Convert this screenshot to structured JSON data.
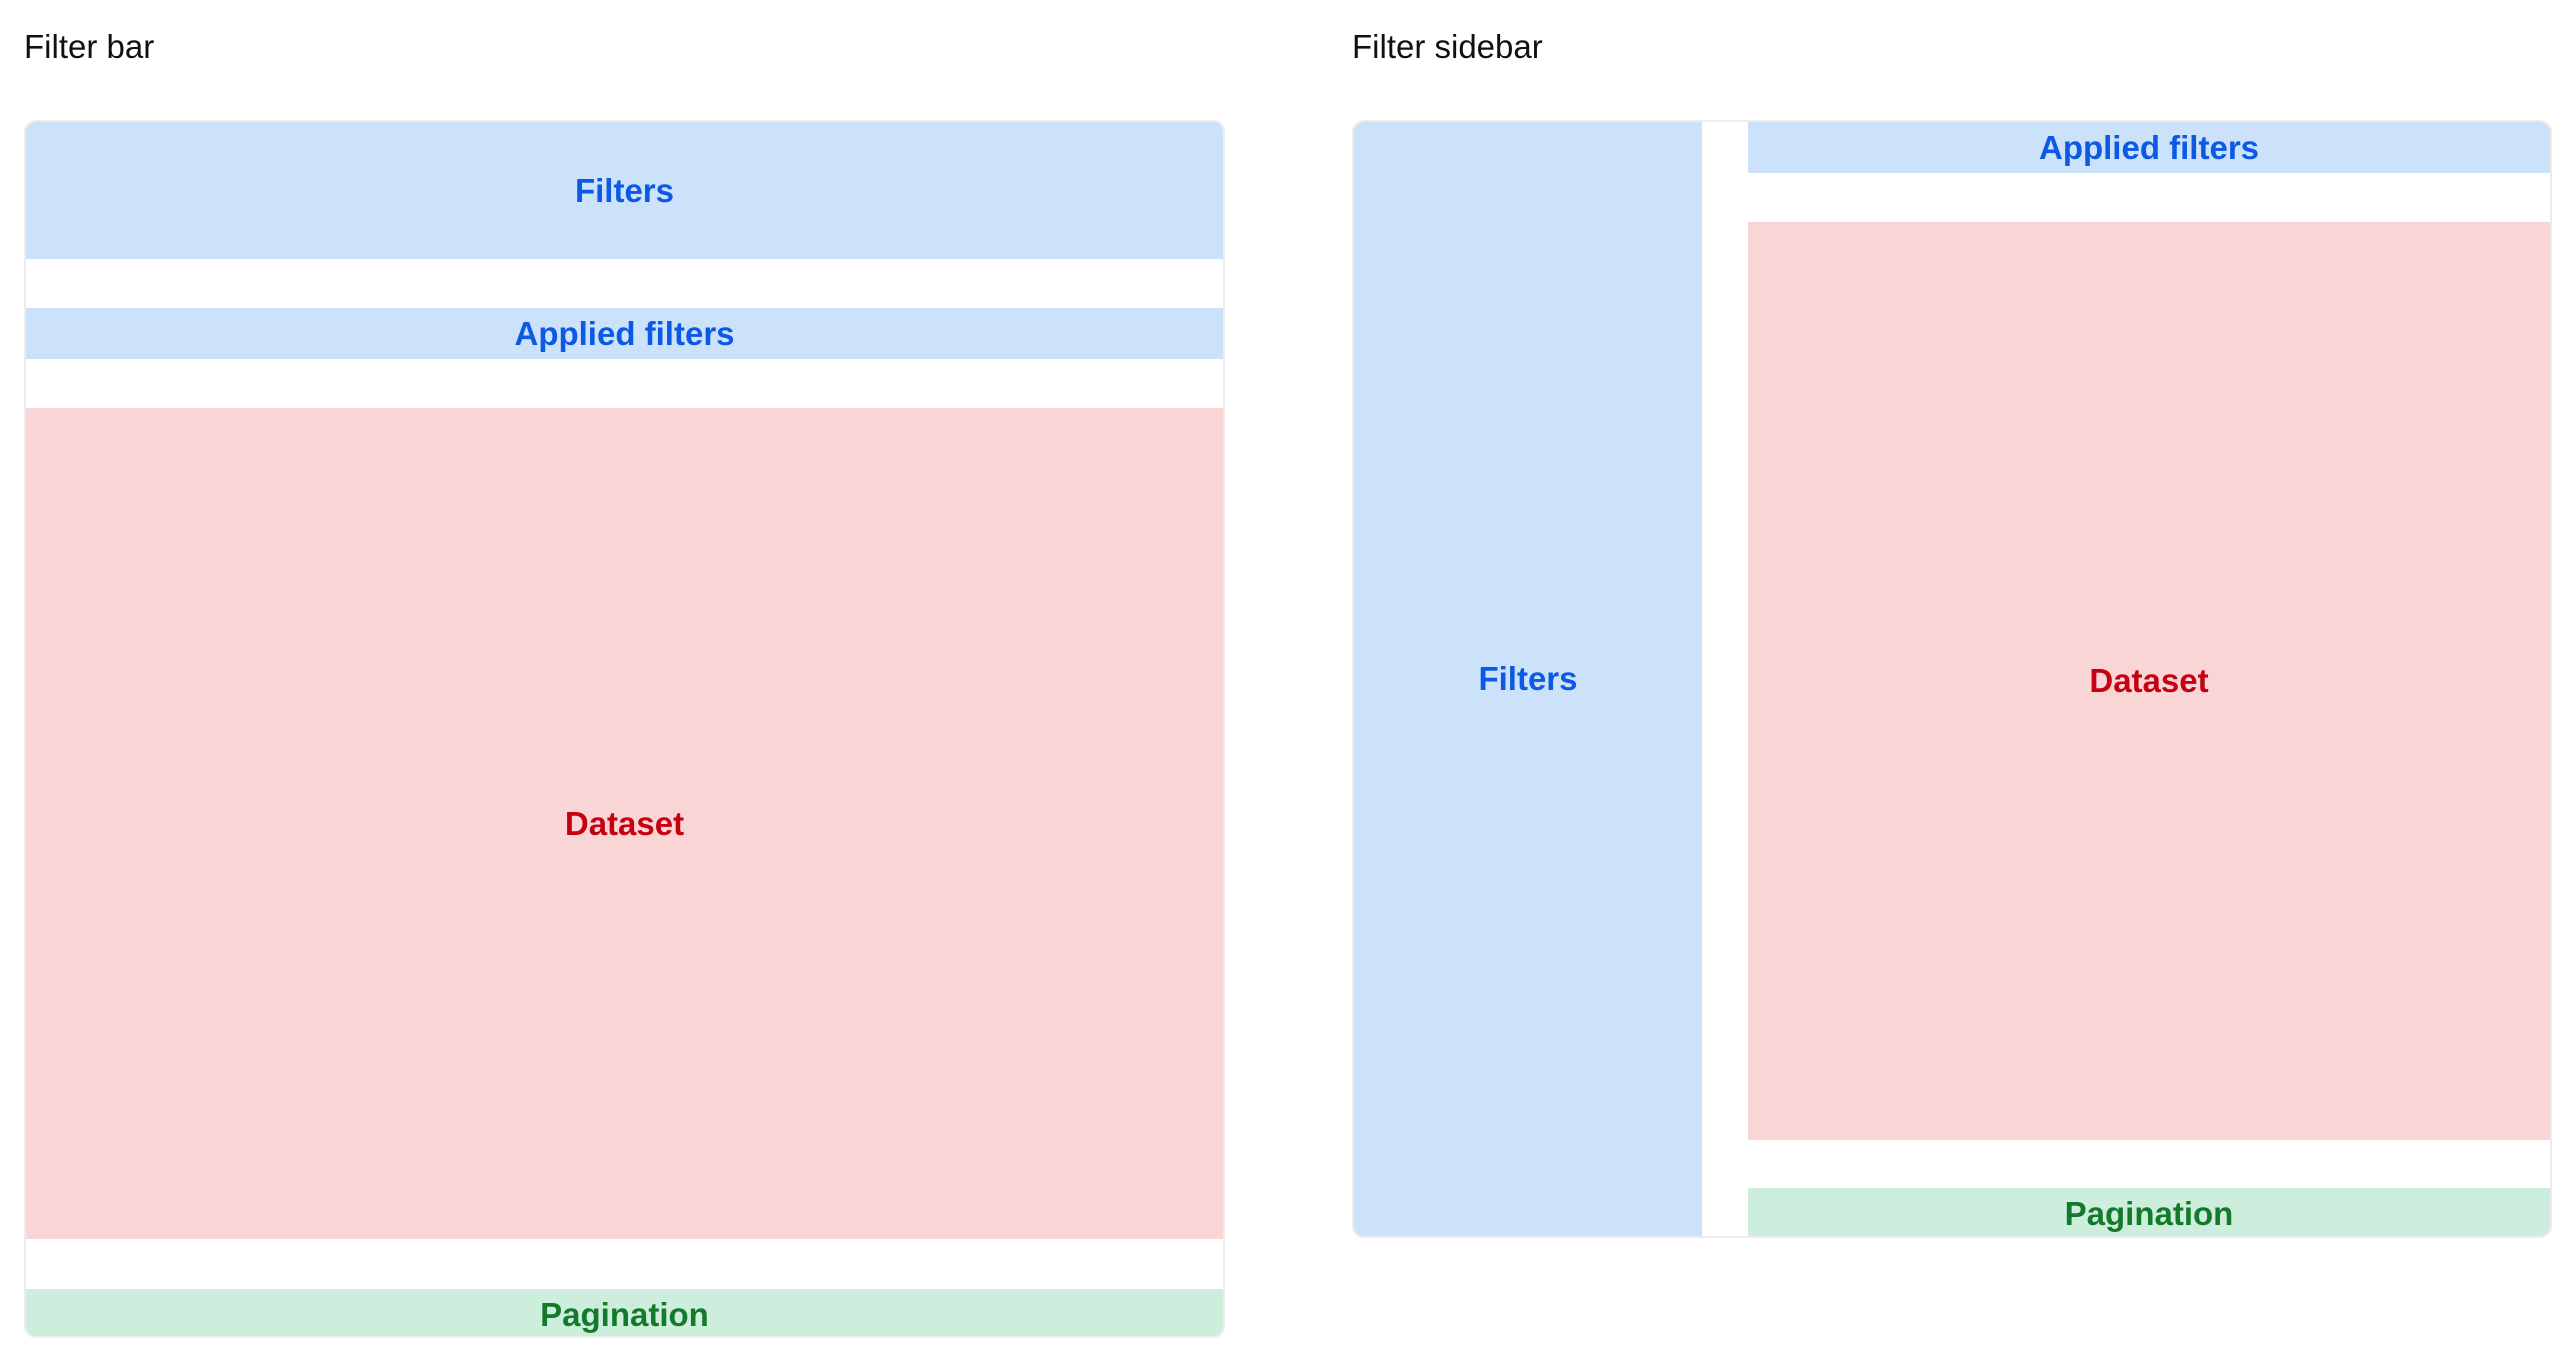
{
  "left": {
    "title": "Filter bar",
    "filters": "Filters",
    "applied_filters": "Applied filters",
    "dataset": "Dataset",
    "pagination": "Pagination"
  },
  "right": {
    "title": "Filter sidebar",
    "filters": "Filters",
    "applied_filters": "Applied filters",
    "dataset": "Dataset",
    "pagination": "Pagination"
  },
  "colors": {
    "filters_bg": "#cce2fb",
    "filters_text": "#0c5ae3",
    "dataset_bg": "#f9d5d5",
    "dataset_text": "#c40012",
    "pagination_bg": "#ceeedd",
    "pagination_text": "#137a2b"
  }
}
